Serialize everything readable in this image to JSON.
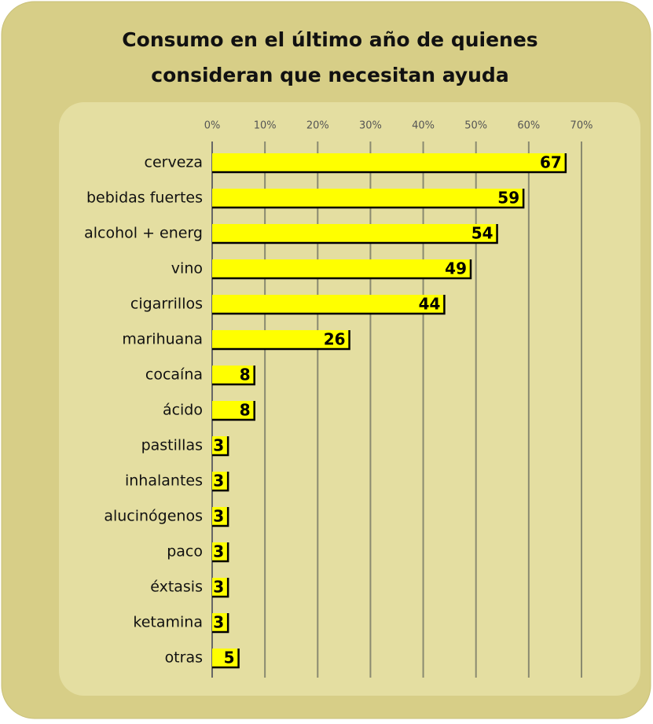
{
  "chart_data": {
    "type": "bar",
    "orientation": "horizontal",
    "title": [
      "Consumo en el último año de quienes",
      "consideran que necesitan ayuda"
    ],
    "categories": [
      "cerveza",
      "bebidas fuertes",
      "alcohol + energ",
      "vino",
      "cigarrillos",
      "marihuana",
      "cocaína",
      "ácido",
      "pastillas",
      "inhalantes",
      "alucinógenos",
      "paco",
      "éxtasis",
      "ketamina",
      "otras"
    ],
    "values": [
      67,
      59,
      54,
      49,
      44,
      26,
      8,
      8,
      3,
      3,
      3,
      3,
      3,
      3,
      5
    ],
    "color": "#ffff00",
    "xlim": [
      0,
      70
    ],
    "xticks": [
      {
        "value": 0,
        "label": "0%"
      },
      {
        "value": 10,
        "label": "10%"
      },
      {
        "value": 20,
        "label": "20%"
      },
      {
        "value": 30,
        "label": "30%"
      },
      {
        "value": 40,
        "label": "40%"
      },
      {
        "value": 50,
        "label": "50%"
      },
      {
        "value": 60,
        "label": "60%"
      },
      {
        "value": 70,
        "label": "70%"
      }
    ],
    "grid": true
  }
}
